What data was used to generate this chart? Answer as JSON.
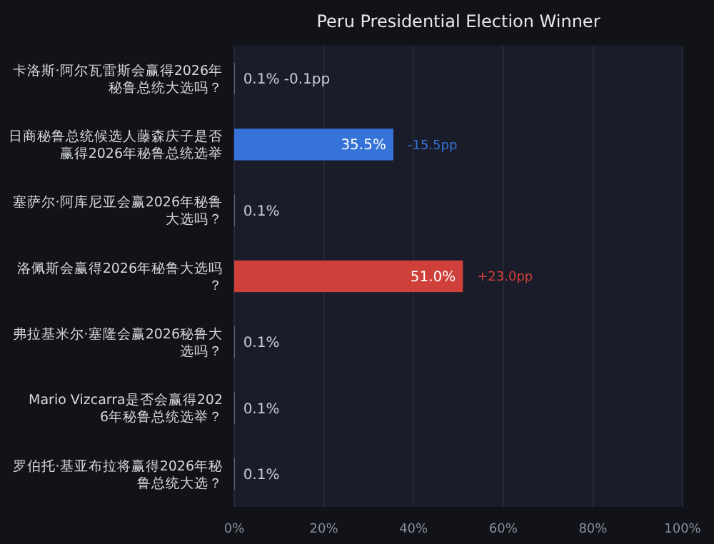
{
  "chart_data": {
    "type": "bar",
    "orientation": "horizontal",
    "title": "Peru Presidential Election Winner",
    "categories": [
      "卡洛斯·阿尔瓦雷斯会赢得2026年秘鲁总统大选吗？",
      "日商秘鲁总统候选人藤森庆子是否赢得2026年秘鲁总统选举",
      "塞萨尔·阿库尼亚会赢2026年秘鲁大选吗？",
      "洛佩斯会赢得2026年秘鲁大选吗？",
      "弗拉基米尔·塞隆会赢2026秘鲁大选吗？",
      "Mario Vizcarra是否会赢得2026年秘鲁总统选举？",
      "罗伯托·基亚布拉将赢得2026年秘鲁总统大选？"
    ],
    "values": [
      0.1,
      35.5,
      0.1,
      51.0,
      0.1,
      0.1,
      0.1
    ],
    "colors": [
      "#8a8f9c",
      "#3573d9",
      "#8a8f9c",
      "#d0403a",
      "#8a8f9c",
      "#8a8f9c",
      "#8a8f9c"
    ],
    "value_labels": [
      "0.1% -0.1pp",
      "35.5%",
      "0.1%",
      "51.0%",
      "0.1%",
      "0.1%",
      "0.1%"
    ],
    "annotations": [
      {
        "text": "-15.5pp",
        "x": 35.5,
        "y": "日商秘鲁总统候选人藤森庆子是否赢得2026年秘鲁总统选举"
      },
      {
        "text": "+23.0pp",
        "x": 51.0,
        "y": "洛佩斯会赢得2026年秘鲁大选吗？"
      }
    ],
    "xlim": [
      0,
      100
    ],
    "xticks": [
      {
        "value": 0,
        "label": "0%"
      },
      {
        "value": 20,
        "label": "20%"
      },
      {
        "value": 40,
        "label": "40%"
      },
      {
        "value": 60,
        "label": "60%"
      },
      {
        "value": 80,
        "label": "80%"
      },
      {
        "value": 100,
        "label": "100%"
      }
    ],
    "grid": "x"
  }
}
